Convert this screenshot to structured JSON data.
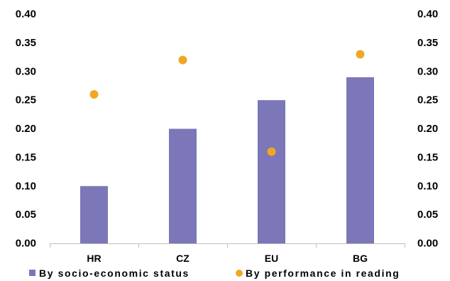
{
  "chart_data": {
    "type": "bar",
    "categories": [
      "HR",
      "CZ",
      "EU",
      "BG"
    ],
    "series": [
      {
        "name": "By socio-economic status",
        "kind": "bar",
        "axis": "left",
        "values": [
          0.1,
          0.2,
          0.25,
          0.29
        ]
      },
      {
        "name": "By performance in reading",
        "kind": "scatter",
        "axis": "right",
        "values": [
          0.26,
          0.32,
          0.16,
          0.33
        ]
      }
    ],
    "ylim": [
      0,
      0.4
    ],
    "y_ticks": [
      "0.00",
      "0.05",
      "0.10",
      "0.15",
      "0.20",
      "0.25",
      "0.30",
      "0.35",
      "0.40"
    ],
    "y2lim": [
      0,
      0.4
    ],
    "y2_ticks": [
      "0.00",
      "0.05",
      "0.10",
      "0.15",
      "0.20",
      "0.25",
      "0.30",
      "0.35",
      "0.40"
    ],
    "title": "",
    "xlabel": "",
    "ylabel": "",
    "grid": false,
    "legend_position": "bottom",
    "colors": {
      "bar": "#7B77B8",
      "dot": "#F0A824",
      "axis": "#BFBFBF"
    }
  }
}
